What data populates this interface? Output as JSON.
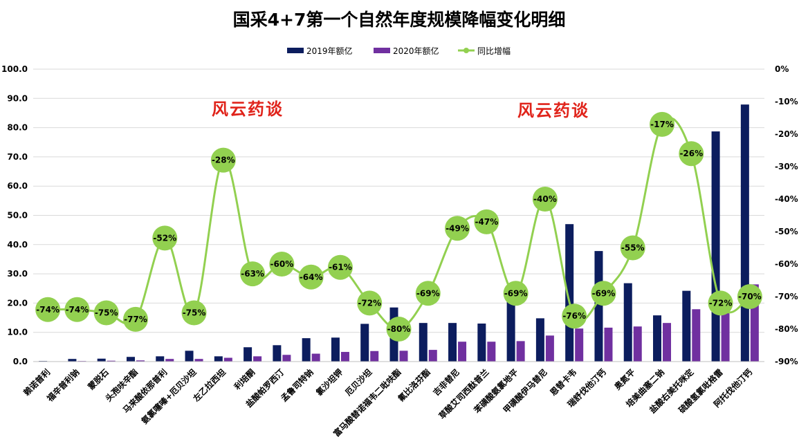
{
  "chart_data": {
    "type": "bar",
    "title": "国采4+7第一个自然年度规模降幅变化明细",
    "watermark": "风云药谈",
    "categories": [
      "赖诺普利",
      "福辛普利钠",
      "蒙脱石",
      "头孢呋辛酯",
      "马来酸依那普利",
      "氨氯噻嗪+厄贝沙坦",
      "左乙拉西坦",
      "利培酮",
      "盐酸帕罗西汀",
      "孟鲁司特钠",
      "氯沙坦钾",
      "厄贝沙坦",
      "富马酸替诺福韦二吡呋酯",
      "氟比洛芬酯",
      "吉非替尼",
      "草酸艾司西酞普兰",
      "苯磺酸氨氯地平",
      "甲磺酸伊马替尼",
      "恩替卡韦",
      "瑞舒伐他汀钙",
      "奥氮平",
      "培美曲塞二钠",
      "盐酸右美托咪定",
      "硫酸氢氯吡格雷",
      "阿托伐他汀钙"
    ],
    "series": [
      {
        "name": "2019年额亿",
        "axis": "left",
        "color": "#0c1d5e",
        "values": [
          0.2,
          0.9,
          1.0,
          1.6,
          1.8,
          3.7,
          1.8,
          4.9,
          5.6,
          8.0,
          8.2,
          12.9,
          18.5,
          13.2,
          13.2,
          13.0,
          21.5,
          14.8,
          47.0,
          37.8,
          26.8,
          15.8,
          24.2,
          78.7,
          87.9
        ]
      },
      {
        "name": "2020年额亿",
        "axis": "left",
        "color": "#7030a0",
        "values": [
          0.1,
          0.2,
          0.3,
          0.4,
          0.9,
          0.9,
          1.3,
          1.8,
          2.3,
          2.7,
          3.3,
          3.6,
          3.7,
          4.0,
          6.8,
          6.8,
          7.0,
          8.9,
          11.3,
          11.6,
          12.0,
          13.2,
          17.9,
          22.0,
          26.4
        ]
      },
      {
        "name": "同比增幅",
        "axis": "right",
        "type": "line",
        "color": "#92d050",
        "values": [
          -74,
          -74,
          -75,
          -77,
          -52,
          -75,
          -28,
          -63,
          -60,
          -64,
          -61,
          -72,
          -80,
          -69,
          -49,
          -47,
          -69,
          -40,
          -76,
          -69,
          -55,
          -17,
          -26,
          -72,
          -70
        ],
        "labels": [
          "-74%",
          "-74%",
          "-75%",
          "-77%",
          "-52%",
          "-75%",
          "-28%",
          "-63%",
          "-60%",
          "-64%",
          "-61%",
          "-72%",
          "-80%",
          "-69%",
          "-49%",
          "-47%",
          "-69%",
          "-40%",
          "-76%",
          "-69%",
          "-55%",
          "-17%",
          "-26%",
          "-72%",
          "-70%"
        ]
      }
    ],
    "y_left": {
      "ylim": [
        0,
        100
      ],
      "ticks": [
        "0.0",
        "10.0",
        "20.0",
        "30.0",
        "40.0",
        "50.0",
        "60.0",
        "70.0",
        "80.0",
        "90.0",
        "100.0"
      ]
    },
    "y_right": {
      "ylim": [
        -90,
        0
      ],
      "ticks": [
        "-90%",
        "-80%",
        "-70%",
        "-60%",
        "-50%",
        "-40%",
        "-30%",
        "-20%",
        "-10%",
        "0%"
      ]
    },
    "grid": true,
    "legend_position": "top-center"
  }
}
